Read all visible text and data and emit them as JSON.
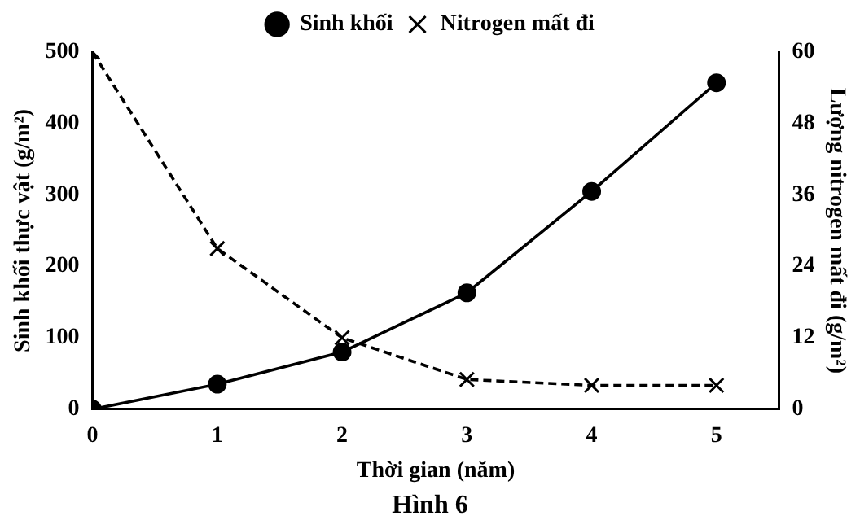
{
  "chart_data": {
    "type": "line",
    "xlabel": "Thời gian (năm)",
    "ylabel": "Sinh khối thực vật (g/m²)",
    "y2label": "Lượng nitrogen mất đi (g/m²)",
    "annotations": [
      "Hình 6"
    ],
    "x": [
      0,
      1,
      2,
      3,
      4,
      5
    ],
    "xlim": [
      0,
      5.5
    ],
    "xticks": [
      0,
      1,
      2,
      3,
      4,
      5
    ],
    "ylim": [
      0,
      500
    ],
    "yticks": [
      0,
      100,
      200,
      300,
      400,
      500
    ],
    "y2lim": [
      0,
      60
    ],
    "y2ticks": [
      0,
      12,
      24,
      36,
      48,
      60
    ],
    "legend": "top",
    "grid": false,
    "series": [
      {
        "name": "Sinh khối",
        "color": "#000000",
        "marker": "circle",
        "line_style": "solid",
        "values": [
          0,
          35,
          80,
          163,
          305,
          457
        ]
      },
      {
        "name": "Nitrogen mất đi",
        "color": "#000000",
        "marker": "cross",
        "line_style": "dashed",
        "axis": "y2",
        "values": [
          60,
          27,
          12,
          5,
          4,
          4
        ]
      }
    ]
  }
}
